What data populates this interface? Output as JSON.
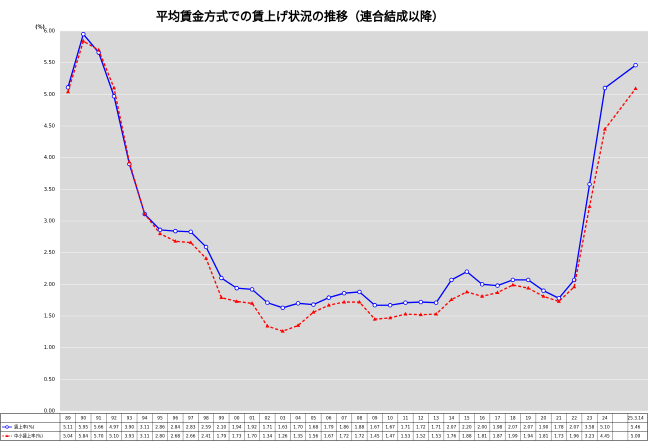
{
  "chart_data": {
    "type": "line",
    "title": "平均賃金方式での賃上げ状況の推移（連合結成以降）",
    "y_unit_label": "(%)",
    "categories": [
      "89",
      "90",
      "91",
      "92",
      "93",
      "94",
      "95",
      "96",
      "97",
      "98",
      "99",
      "00",
      "01",
      "02",
      "03",
      "04",
      "05",
      "06",
      "07",
      "08",
      "09",
      "10",
      "11",
      "12",
      "13",
      "14",
      "15",
      "16",
      "17",
      "18",
      "19",
      "20",
      "21",
      "22",
      "23",
      "24",
      "25.3.14"
    ],
    "series": [
      {
        "name": "賃上率(%)",
        "color": "#0000ff",
        "dashed": false,
        "marker": "circle",
        "values": [
          5.11,
          5.95,
          5.66,
          4.97,
          3.9,
          3.11,
          2.86,
          2.84,
          2.83,
          2.59,
          2.1,
          1.94,
          1.92,
          1.71,
          1.63,
          1.7,
          1.68,
          1.79,
          1.86,
          1.88,
          1.67,
          1.67,
          1.71,
          1.72,
          1.71,
          2.07,
          2.2,
          2,
          1.98,
          2.07,
          2.07,
          1.9,
          1.78,
          2.07,
          3.58,
          5.1,
          5.46
        ],
        "value_labels": [
          "5.11",
          "5.95",
          "5.66",
          "4.97",
          "3.90",
          "3.11",
          "2.86",
          "2.84",
          "2.83",
          "2.59",
          "2.10",
          "1.94",
          "1.92",
          "1.71",
          "1.63",
          "1.70",
          "1.68",
          "1.79",
          "1.86",
          "1.88",
          "1.67",
          "1.67",
          "1.71",
          "1.72",
          "1.71",
          "2.07",
          "2.20",
          "2.00",
          "1.98",
          "2.07",
          "2.07",
          "1.90",
          "1.78",
          "2.07",
          "3.58",
          "5.10",
          "5.46"
        ]
      },
      {
        "name": "中小賃上率(%)",
        "color": "#ff0000",
        "dashed": true,
        "marker": "triangle",
        "values": [
          5.04,
          5.84,
          5.7,
          5.1,
          3.93,
          3.11,
          2.8,
          2.68,
          2.66,
          2.41,
          1.79,
          1.73,
          1.7,
          1.34,
          1.26,
          1.35,
          1.56,
          1.67,
          1.72,
          1.72,
          1.45,
          1.47,
          1.53,
          1.52,
          1.53,
          1.76,
          1.88,
          1.81,
          1.87,
          1.99,
          1.94,
          1.81,
          1.73,
          1.96,
          3.23,
          4.45,
          5.09
        ],
        "value_labels": [
          "5.04",
          "5.84",
          "5.70",
          "5.10",
          "3.93",
          "3.11",
          "2.80",
          "2.68",
          "2.66",
          "2.41",
          "1.79",
          "1.73",
          "1.70",
          "1.34",
          "1.26",
          "1.35",
          "1.56",
          "1.67",
          "1.72",
          "1.72",
          "1.45",
          "1.47",
          "1.53",
          "1.52",
          "1.53",
          "1.76",
          "1.88",
          "1.81",
          "1.87",
          "1.99",
          "1.94",
          "1.81",
          "1.73",
          "1.96",
          "3.23",
          "4.45",
          "5.09"
        ]
      }
    ],
    "ylim": [
      0,
      6
    ],
    "yticks": [
      {
        "value": 0,
        "label": "0.00"
      },
      {
        "value": 0.5,
        "label": "0.50"
      },
      {
        "value": 1,
        "label": "1.00"
      },
      {
        "value": 1.5,
        "label": "1.50"
      },
      {
        "value": 2,
        "label": "2.00"
      },
      {
        "value": 2.5,
        "label": "2.50"
      },
      {
        "value": 3,
        "label": "3.00"
      },
      {
        "value": 3.5,
        "label": "3.50"
      },
      {
        "value": 4,
        "label": "4.00"
      },
      {
        "value": 4.5,
        "label": "4.50"
      },
      {
        "value": 5,
        "label": "5.00"
      },
      {
        "value": 5.5,
        "label": "5.50"
      },
      {
        "value": 6,
        "label": "6.00"
      }
    ],
    "grid": true
  }
}
